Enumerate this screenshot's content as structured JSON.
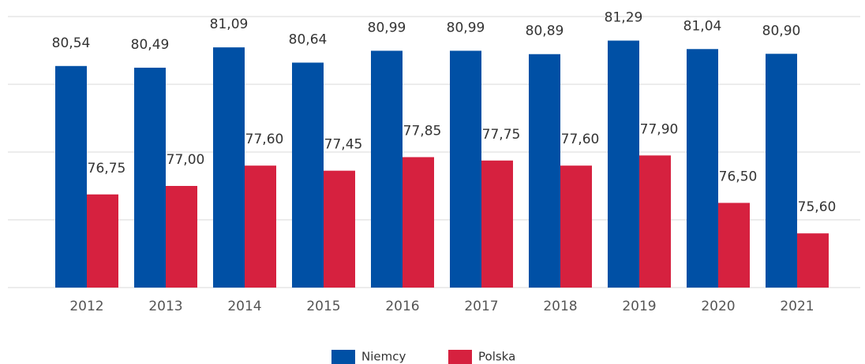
{
  "chart_data": {
    "type": "bar",
    "categories": [
      "2012",
      "2013",
      "2014",
      "2015",
      "2016",
      "2017",
      "2018",
      "2019",
      "2020",
      "2021"
    ],
    "series": [
      {
        "name": "Niemcy",
        "color": "#0050a5",
        "values": [
          80.54,
          80.49,
          81.09,
          80.64,
          80.99,
          80.99,
          80.89,
          81.29,
          81.04,
          80.9
        ],
        "value_labels": [
          "80,54",
          "80,49",
          "81,09",
          "80,64",
          "80,99",
          "80,99",
          "80,89",
          "81,29",
          "81,04",
          "80,90"
        ]
      },
      {
        "name": "Polska",
        "color": "#d6213f",
        "values": [
          76.75,
          77.0,
          77.6,
          77.45,
          77.85,
          77.75,
          77.6,
          77.9,
          76.5,
          75.6
        ],
        "value_labels": [
          "76,75",
          "77,00",
          "77,60",
          "77,45",
          "77,85",
          "77,75",
          "77,60",
          "77,90",
          "76,50",
          "75,60"
        ]
      }
    ],
    "ylim": [
      74,
      82
    ],
    "yticks": [
      74,
      76,
      78,
      80,
      82
    ],
    "grid": true,
    "legend": "bottom"
  }
}
